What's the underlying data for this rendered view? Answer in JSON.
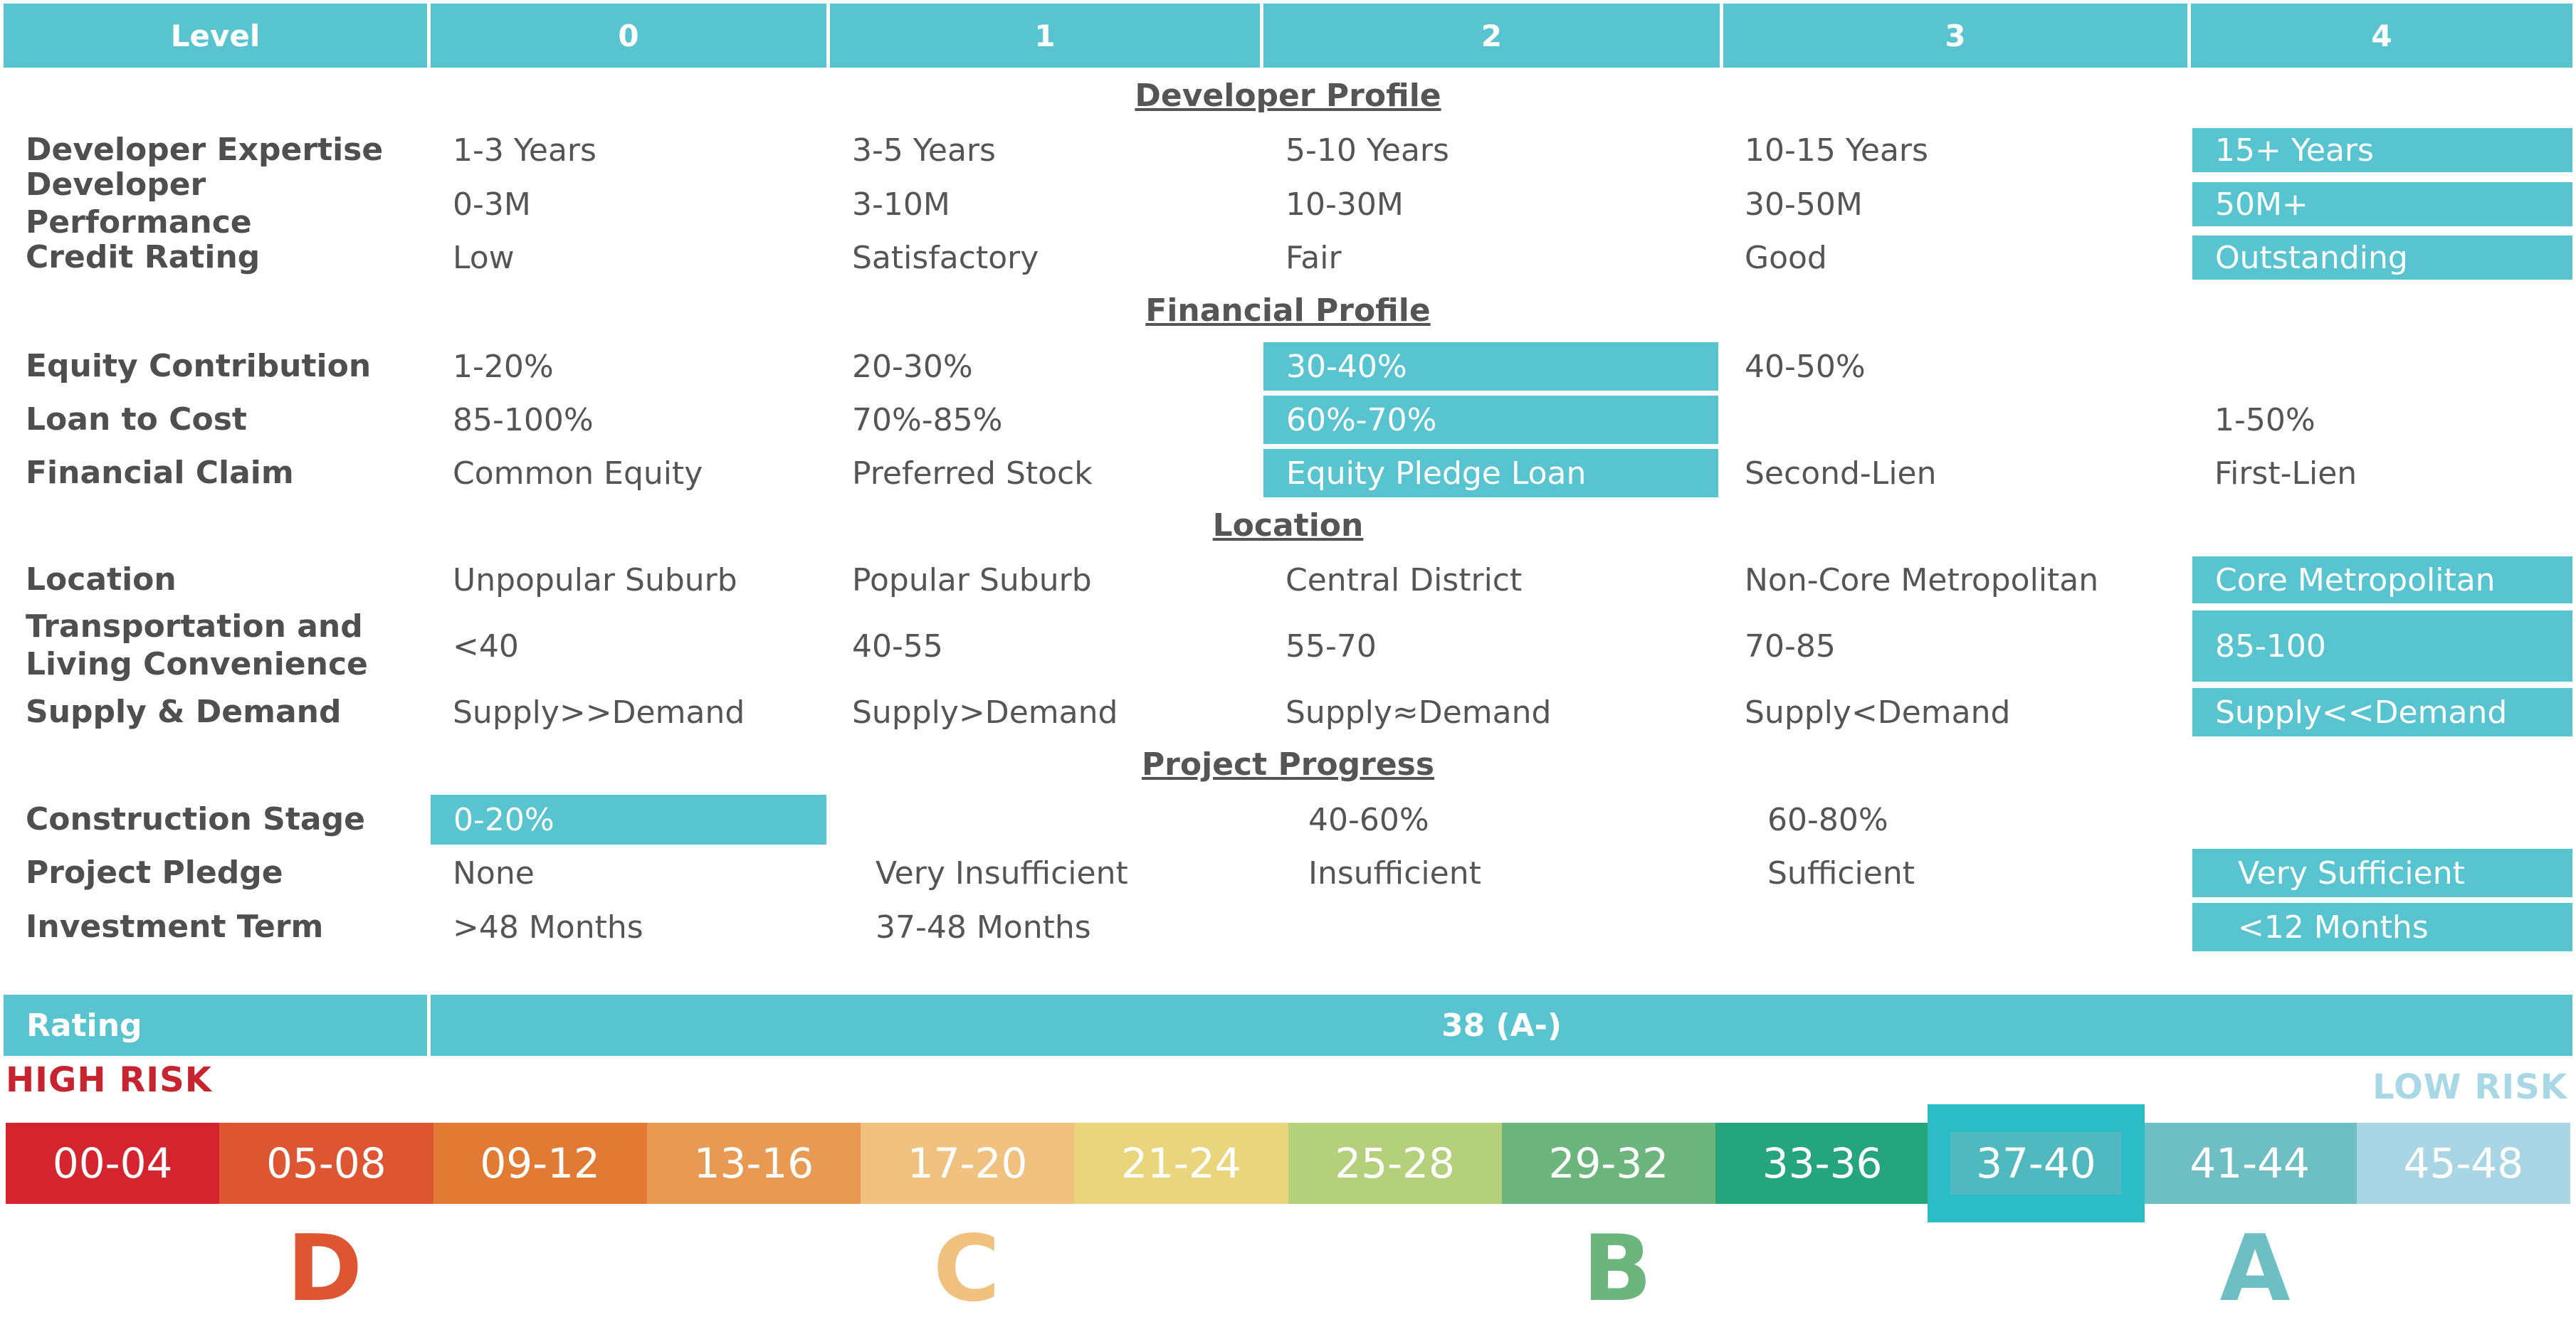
{
  "header": {
    "level_label": "Level",
    "levels": [
      "0",
      "1",
      "2",
      "3",
      "4"
    ]
  },
  "sections": {
    "developer_profile": "Developer Profile",
    "financial_profile": "Financial Profile",
    "location": "Location",
    "project_progress": "Project Progress"
  },
  "rows": {
    "developer_expertise": {
      "label": "Developer Expertise",
      "values": [
        "1-3 Years",
        "3-5 Years",
        "5-10 Years",
        "10-15 Years",
        "15+ Years"
      ],
      "highlighted_level": 4
    },
    "developer_performance": {
      "label": "Developer Performance",
      "values": [
        "0-3M",
        "3-10M",
        "10-30M",
        "30-50M",
        "50M+"
      ],
      "highlighted_level": 4
    },
    "credit_rating": {
      "label": "Credit Rating",
      "values": [
        "Low",
        "Satisfactory",
        "Fair",
        "Good",
        "Outstanding"
      ],
      "highlighted_level": 4
    },
    "equity_contribution": {
      "label": "Equity Contribution",
      "values": [
        "1-20%",
        "20-30%",
        "30-40%",
        "40-50%",
        ""
      ],
      "highlighted_level": 2
    },
    "loan_to_cost": {
      "label": "Loan to Cost",
      "values": [
        "85-100%",
        "70%-85%",
        "60%-70%",
        "",
        "1-50%"
      ],
      "highlighted_level": 2
    },
    "financial_claim": {
      "label": "Financial Claim",
      "values": [
        "Common Equity",
        "Preferred Stock",
        "Equity Pledge Loan",
        "Second-Lien",
        "First-Lien"
      ],
      "highlighted_level": 2
    },
    "location": {
      "label": "Location",
      "values": [
        "Unpopular Suburb",
        "Popular Suburb",
        "Central District",
        "Non-Core Metropolitan",
        "Core Metropolitan"
      ],
      "highlighted_level": 4
    },
    "transportation": {
      "label_line1": "Transportation and",
      "label_line2": "Living Convenience",
      "values": [
        "<40",
        "40-55",
        "55-70",
        "70-85",
        "85-100"
      ],
      "highlighted_level": 4
    },
    "supply_demand": {
      "label": "Supply & Demand",
      "values": [
        "Supply>>Demand",
        "Supply>Demand",
        "Supply≈Demand",
        "Supply<Demand",
        "Supply<<Demand"
      ],
      "highlighted_level": 4
    },
    "construction_stage": {
      "label": "Construction Stage",
      "values": [
        "0-20%",
        "",
        "40-60%",
        "60-80%",
        ""
      ],
      "highlighted_level": 0
    },
    "project_pledge": {
      "label": "Project Pledge",
      "values": [
        "None",
        "Very Insufficient",
        "Insufficient",
        "Sufficient",
        "Very Sufficient"
      ],
      "highlighted_level": 4
    },
    "investment_term": {
      "label": "Investment Term",
      "values": [
        ">48 Months",
        "37-48 Months",
        "",
        "",
        "<12 Months"
      ],
      "highlighted_level": 4
    }
  },
  "rating": {
    "label": "Rating",
    "value": "38 (A-)"
  },
  "risk_scale": {
    "high_label": "HIGH RISK",
    "low_label": "LOW RISK",
    "segments": [
      {
        "range": "00-04",
        "color": "#d4252f"
      },
      {
        "range": "05-08",
        "color": "#dd5631"
      },
      {
        "range": "09-12",
        "color": "#e17a33"
      },
      {
        "range": "13-16",
        "color": "#e89a53"
      },
      {
        "range": "17-20",
        "color": "#f0c17f"
      },
      {
        "range": "21-24",
        "color": "#e9d67c"
      },
      {
        "range": "25-28",
        "color": "#b5d07a"
      },
      {
        "range": "29-32",
        "color": "#6cb57c"
      },
      {
        "range": "33-36",
        "color": "#24a57c"
      },
      {
        "range": "37-40",
        "color": "#2bbcc6",
        "selected": true
      },
      {
        "range": "41-44",
        "color": "#6ebfc4"
      },
      {
        "range": "45-48",
        "color": "#a9d6e4"
      }
    ],
    "grades": [
      {
        "letter": "D",
        "color": "#dd5631"
      },
      {
        "letter": "C",
        "color": "#f0c17f"
      },
      {
        "letter": "B",
        "color": "#6cb57c"
      },
      {
        "letter": "A",
        "color": "#6ebfc4"
      }
    ]
  }
}
